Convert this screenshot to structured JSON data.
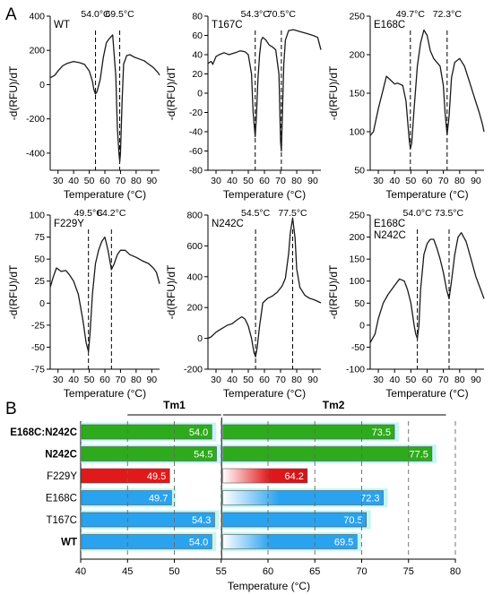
{
  "panel_labels": {
    "a": "A",
    "b": "B"
  },
  "colors": {
    "green": "#2eab1c",
    "red": "#e0191b",
    "blue": "#29a3f0",
    "cyan": "#8ff0ea"
  },
  "chart_data": [
    {
      "type": "line",
      "panel": "A",
      "title": "WT",
      "xlabel": "Temperature (°C)",
      "ylabel": "-d(RFU)/dT",
      "xlim": [
        25,
        95
      ],
      "xticks": [
        30,
        40,
        50,
        60,
        70,
        80,
        90
      ],
      "ylim": [
        -500,
        400
      ],
      "yticks": [
        -400,
        -200,
        0,
        200,
        400
      ],
      "annotations": [
        {
          "x": 54.0,
          "label": "54.0°C"
        },
        {
          "x": 69.5,
          "label": "69.5°C"
        }
      ],
      "series": [
        {
          "x": [
            25,
            28,
            30,
            33,
            36,
            40,
            44,
            47,
            50,
            52,
            53,
            54,
            55,
            57,
            59,
            61,
            63,
            65,
            67,
            68,
            69,
            69.5,
            70,
            71,
            72,
            74,
            76,
            79,
            82,
            85,
            88,
            91,
            94,
            95
          ],
          "y": [
            40,
            55,
            80,
            110,
            125,
            135,
            128,
            118,
            80,
            20,
            -30,
            -55,
            -40,
            30,
            160,
            245,
            270,
            290,
            50,
            -250,
            -400,
            -450,
            -400,
            -100,
            120,
            170,
            175,
            160,
            150,
            140,
            120,
            100,
            70,
            55
          ]
        }
      ]
    },
    {
      "type": "line",
      "panel": "A",
      "title": "T167C",
      "xlabel": "Temperature (°C)",
      "ylabel": "-d(RFU)/dT",
      "xlim": [
        25,
        95
      ],
      "xticks": [
        30,
        40,
        50,
        60,
        70,
        80,
        90
      ],
      "ylim": [
        -80,
        80
      ],
      "yticks": [
        -80,
        -60,
        -40,
        -20,
        0,
        20,
        40,
        60,
        80
      ],
      "annotations": [
        {
          "x": 54.3,
          "label": "54.3°C"
        },
        {
          "x": 70.5,
          "label": "70.5°C"
        }
      ],
      "series": [
        {
          "x": [
            25,
            27,
            28,
            30,
            32,
            35,
            38,
            42,
            45,
            48,
            50,
            52,
            53,
            54,
            54.3,
            55,
            56,
            57,
            58,
            59,
            61,
            63,
            65,
            67,
            69,
            70,
            70.5,
            71,
            72,
            73,
            75,
            78,
            82,
            86,
            90,
            93,
            95
          ],
          "y": [
            31,
            33,
            30,
            38,
            40,
            42,
            40,
            42,
            44,
            43,
            40,
            20,
            -20,
            -40,
            -45,
            -25,
            15,
            40,
            55,
            58,
            55,
            50,
            48,
            45,
            20,
            -50,
            -60,
            -30,
            30,
            55,
            65,
            66,
            64,
            62,
            60,
            58,
            45
          ]
        }
      ]
    },
    {
      "type": "line",
      "panel": "A",
      "title": "E168C",
      "xlabel": "Temperature (°C)",
      "ylabel": "-d(RFU)/dT",
      "xlim": [
        25,
        95
      ],
      "xticks": [
        30,
        40,
        50,
        60,
        70,
        80,
        90
      ],
      "ylim": [
        50,
        250
      ],
      "yticks": [
        50,
        100,
        150,
        200,
        250
      ],
      "annotations": [
        {
          "x": 49.7,
          "label": "49.7°C"
        },
        {
          "x": 72.3,
          "label": "72.3°C"
        }
      ],
      "series": [
        {
          "x": [
            25,
            27,
            30,
            33,
            35,
            37,
            40,
            42,
            45,
            47,
            48,
            49,
            49.7,
            50.5,
            52,
            54,
            56,
            58,
            60,
            62,
            64,
            66,
            68,
            70,
            71,
            72.3,
            73.5,
            75,
            77,
            80,
            83,
            86,
            89,
            92,
            94,
            95
          ],
          "y": [
            95,
            100,
            130,
            155,
            172,
            168,
            162,
            163,
            160,
            140,
            115,
            90,
            78,
            85,
            130,
            185,
            215,
            232,
            225,
            205,
            195,
            190,
            185,
            160,
            125,
            96,
            120,
            170,
            190,
            195,
            185,
            165,
            145,
            125,
            110,
            100
          ]
        }
      ]
    },
    {
      "type": "line",
      "panel": "A",
      "title": "F229Y",
      "xlabel": "Temperature (°C)",
      "ylabel": "-d(RFU)/dT",
      "xlim": [
        25,
        95
      ],
      "xticks": [
        30,
        40,
        50,
        60,
        70,
        80,
        90
      ],
      "ylim": [
        -75,
        100
      ],
      "yticks": [
        -75,
        -50,
        -25,
        0,
        25,
        50,
        75,
        100
      ],
      "annotations": [
        {
          "x": 49.5,
          "label": "49.5°C"
        },
        {
          "x": 64.2,
          "label": "64.2°C"
        }
      ],
      "series": [
        {
          "x": [
            25,
            27,
            29,
            32,
            35,
            37,
            40,
            43,
            46,
            48,
            49.5,
            50.5,
            52,
            54,
            56,
            58,
            60,
            62,
            64.2,
            66,
            68,
            70,
            73,
            76,
            80,
            84,
            88,
            91,
            93,
            95
          ],
          "y": [
            18,
            30,
            40,
            36,
            37,
            33,
            25,
            10,
            -20,
            -45,
            -55,
            -35,
            10,
            45,
            60,
            70,
            75,
            60,
            38,
            45,
            55,
            60,
            60,
            55,
            52,
            48,
            45,
            40,
            35,
            22
          ]
        }
      ]
    },
    {
      "type": "line",
      "panel": "A",
      "title": "N242C",
      "xlabel": "Temperature (°C)",
      "ylabel": "-d(RFU)/dT",
      "xlim": [
        25,
        95
      ],
      "xticks": [
        30,
        40,
        50,
        60,
        70,
        80,
        90
      ],
      "ylim": [
        -200,
        800
      ],
      "yticks": [
        -200,
        0,
        200,
        400,
        600,
        800
      ],
      "annotations": [
        {
          "x": 54.5,
          "label": "54.5°C"
        },
        {
          "x": 77.5,
          "label": "77.5°C"
        }
      ],
      "series": [
        {
          "x": [
            25,
            27,
            30,
            33,
            37,
            40,
            43,
            46,
            48,
            50,
            52,
            53.5,
            54.5,
            55.5,
            57,
            59,
            62,
            65,
            68,
            71,
            73,
            75,
            76,
            77.5,
            79,
            80,
            82,
            85,
            88,
            91,
            95
          ],
          "y": [
            0,
            10,
            40,
            60,
            85,
            95,
            120,
            140,
            125,
            80,
            0,
            -90,
            -120,
            -60,
            80,
            230,
            260,
            275,
            300,
            340,
            390,
            550,
            680,
            780,
            650,
            450,
            330,
            280,
            260,
            250,
            230
          ]
        }
      ]
    },
    {
      "type": "line",
      "panel": "A",
      "title": "E168C\nN242C",
      "xlabel": "Temperature (°C)",
      "ylabel": "-d(RFU)/dT",
      "xlim": [
        25,
        95
      ],
      "xticks": [
        30,
        40,
        50,
        60,
        70,
        80,
        90
      ],
      "ylim": [
        -100,
        250
      ],
      "yticks": [
        -100,
        -50,
        0,
        50,
        100,
        150,
        200,
        250
      ],
      "annotations": [
        {
          "x": 54.0,
          "label": "54.0°C"
        },
        {
          "x": 73.5,
          "label": "73.5°C"
        }
      ],
      "series": [
        {
          "x": [
            25,
            28,
            30,
            33,
            36,
            40,
            43,
            46,
            48,
            50,
            52,
            53,
            54,
            55,
            56,
            58,
            60,
            62,
            64,
            66,
            68,
            70,
            72,
            73.5,
            75,
            77,
            79,
            81,
            84,
            87,
            90,
            93,
            95
          ],
          "y": [
            -40,
            -20,
            15,
            50,
            70,
            90,
            105,
            100,
            80,
            50,
            0,
            -20,
            -30,
            0,
            80,
            160,
            185,
            195,
            195,
            175,
            150,
            120,
            80,
            60,
            100,
            160,
            200,
            210,
            190,
            150,
            110,
            80,
            60
          ]
        }
      ]
    },
    {
      "type": "bar",
      "panel": "B",
      "orientation": "horizontal",
      "xlabel": "Temperature (°C)",
      "xlim": [
        40,
        80
      ],
      "xticks": [
        40,
        45,
        50,
        55,
        60,
        65,
        70,
        75,
        80
      ],
      "group_labels": [
        "Tm1",
        "Tm2"
      ],
      "categories": [
        "E168C:N242C",
        "N242C",
        "F229Y",
        "E168C",
        "T167C",
        "WT"
      ],
      "series": [
        {
          "values": [
            54.0,
            54.5,
            49.5,
            49.7,
            54.3,
            54.0
          ]
        },
        {
          "values": [
            73.5,
            77.5,
            64.2,
            72.3,
            70.5,
            69.5
          ]
        }
      ]
    }
  ]
}
